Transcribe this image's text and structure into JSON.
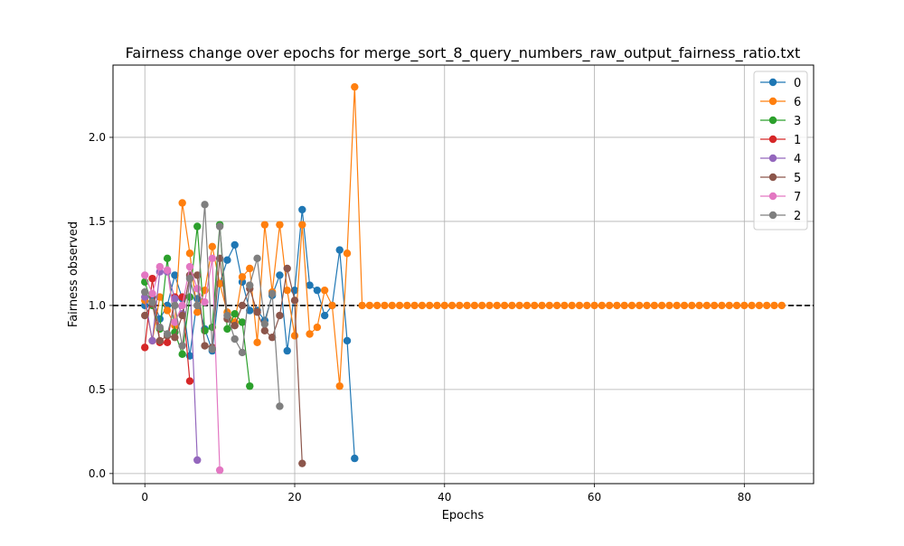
{
  "chart_data": {
    "type": "line",
    "title": "Fairness change over epochs for merge_sort_8_query_numbers_raw_output_fairness_ratio.txt",
    "xlabel": "Epochs",
    "ylabel": "Fairness observed",
    "xlim": [
      -4.25,
      89.25
    ],
    "ylim": [
      -0.06,
      2.43
    ],
    "xticks": [
      0,
      20,
      40,
      60,
      80
    ],
    "yticks": [
      0.0,
      0.5,
      1.0,
      1.5,
      2.0
    ],
    "xtick_labels": [
      "0",
      "20",
      "40",
      "60",
      "80"
    ],
    "ytick_labels": [
      "0.0",
      "0.5",
      "1.0",
      "1.5",
      "2.0"
    ],
    "grid": true,
    "legend_position": "upper right",
    "reference_line": {
      "y": 1.0,
      "style": "dashed",
      "color": "#000000"
    },
    "series": [
      {
        "name": "0",
        "color": "#1f77b4",
        "x": [
          0,
          1,
          2,
          3,
          4,
          5,
          6,
          7,
          8,
          9,
          10,
          11,
          12,
          13,
          14,
          15,
          16,
          17,
          18,
          19,
          20,
          21,
          22,
          23,
          24,
          25,
          26,
          27,
          28
        ],
        "y": [
          1.0,
          1.05,
          0.92,
          1.0,
          1.18,
          1.04,
          0.7,
          1.04,
          0.86,
          0.73,
          1.13,
          1.27,
          1.36,
          1.14,
          0.97,
          0.97,
          0.91,
          1.06,
          1.18,
          0.73,
          1.09,
          1.57,
          1.12,
          1.09,
          0.94,
          1.0,
          1.33,
          0.79,
          0.09
        ]
      },
      {
        "name": "6",
        "color": "#ff7f0e",
        "x": [
          0,
          1,
          2,
          3,
          4,
          5,
          6,
          7,
          8,
          9,
          10,
          11,
          12,
          13,
          14,
          15,
          16,
          17,
          18,
          19,
          20,
          21,
          22,
          23,
          24,
          25,
          26,
          27,
          28,
          29,
          30,
          31,
          32,
          33,
          34,
          35,
          36,
          37,
          38,
          39,
          40,
          41,
          42,
          43,
          44,
          45,
          46,
          47,
          48,
          49,
          50,
          51,
          52,
          53,
          54,
          55,
          56,
          57,
          58,
          59,
          60,
          61,
          62,
          63,
          64,
          65,
          66,
          67,
          68,
          69,
          70,
          71,
          72,
          73,
          74,
          75,
          76,
          77,
          78,
          79,
          80,
          81,
          82,
          83,
          84,
          85
        ],
        "y": [
          1.03,
          0.79,
          1.05,
          0.97,
          0.88,
          1.61,
          1.31,
          0.96,
          1.09,
          1.35,
          1.13,
          0.96,
          0.9,
          1.17,
          1.22,
          0.78,
          1.48,
          1.08,
          1.48,
          1.09,
          0.82,
          1.48,
          0.83,
          0.87,
          1.09,
          1.0,
          0.52,
          1.31,
          2.3,
          1.0,
          1.0,
          1.0,
          1.0,
          1.0,
          1.0,
          1.0,
          1.0,
          1.0,
          1.0,
          1.0,
          1.0,
          1.0,
          1.0,
          1.0,
          1.0,
          1.0,
          1.0,
          1.0,
          1.0,
          1.0,
          1.0,
          1.0,
          1.0,
          1.0,
          1.0,
          1.0,
          1.0,
          1.0,
          1.0,
          1.0,
          1.0,
          1.0,
          1.0,
          1.0,
          1.0,
          1.0,
          1.0,
          1.0,
          1.0,
          1.0,
          1.0,
          1.0,
          1.0,
          1.0,
          1.0,
          1.0,
          1.0,
          1.0,
          1.0,
          1.0,
          1.0,
          1.0,
          1.0,
          1.0,
          1.0,
          1.0
        ]
      },
      {
        "name": "3",
        "color": "#2ca02c",
        "x": [
          0,
          1,
          2,
          3,
          4,
          5,
          6,
          7,
          8,
          9,
          10,
          11,
          12,
          13,
          14
        ],
        "y": [
          1.14,
          1.0,
          0.86,
          1.28,
          0.84,
          0.71,
          1.05,
          1.47,
          0.85,
          0.87,
          1.48,
          0.86,
          0.95,
          0.9,
          0.52
        ]
      },
      {
        "name": "1",
        "color": "#d62728",
        "x": [
          0,
          1,
          2,
          3,
          4,
          5,
          6
        ],
        "y": [
          0.75,
          1.16,
          0.78,
          0.78,
          1.05,
          1.05,
          0.55
        ]
      },
      {
        "name": "4",
        "color": "#9467bd",
        "x": [
          0,
          1,
          2,
          3,
          4,
          5,
          6,
          7
        ],
        "y": [
          1.05,
          0.79,
          1.2,
          1.2,
          1.04,
          0.95,
          1.17,
          0.08
        ]
      },
      {
        "name": "5",
        "color": "#8c564b",
        "x": [
          0,
          1,
          2,
          3,
          4,
          5,
          6,
          7,
          8,
          9,
          10,
          11,
          12,
          13,
          14,
          15,
          16,
          17,
          18,
          19,
          20,
          21
        ],
        "y": [
          0.94,
          1.01,
          0.79,
          0.82,
          0.81,
          0.94,
          1.18,
          1.18,
          0.76,
          0.75,
          1.28,
          0.92,
          0.88,
          1.0,
          1.1,
          0.96,
          0.85,
          0.81,
          0.94,
          1.22,
          1.03,
          0.06
        ]
      },
      {
        "name": "7",
        "color": "#e377c2",
        "x": [
          0,
          1,
          2,
          3,
          4,
          5,
          6,
          7,
          8,
          9,
          10
        ],
        "y": [
          1.18,
          1.07,
          1.23,
          1.21,
          0.9,
          1.0,
          1.23,
          1.1,
          1.02,
          1.28,
          0.02
        ]
      },
      {
        "name": "2",
        "color": "#7f7f7f",
        "x": [
          0,
          1,
          2,
          3,
          4,
          5,
          6,
          7,
          8,
          9,
          10,
          11,
          12,
          13,
          14,
          15,
          16,
          17,
          18
        ],
        "y": [
          1.08,
          1.02,
          0.87,
          0.83,
          1.0,
          0.76,
          1.16,
          1.0,
          1.6,
          0.74,
          1.47,
          0.94,
          0.8,
          0.72,
          1.12,
          1.28,
          0.89,
          1.07,
          0.4
        ]
      }
    ]
  }
}
